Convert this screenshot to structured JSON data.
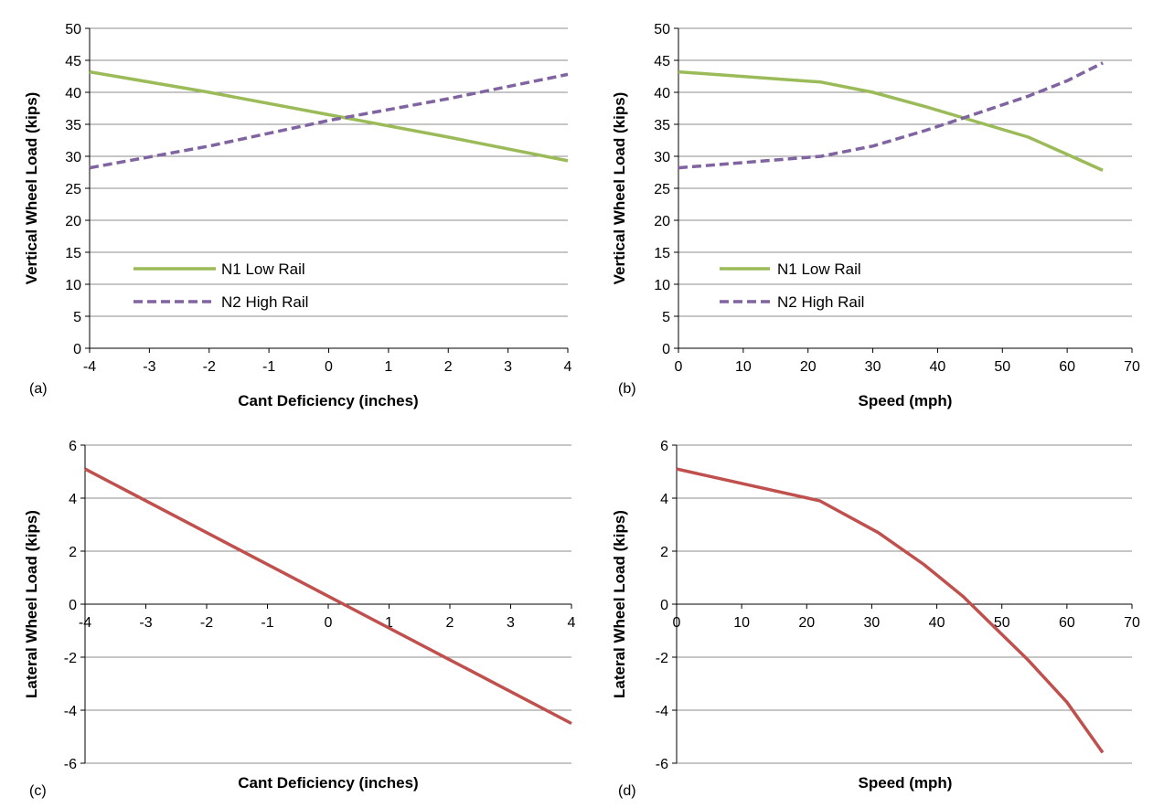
{
  "colors": {
    "n1": "#9bbb59",
    "n2": "#8064a2",
    "lateral": "#c0504d",
    "grid": "#8c8c8c",
    "axis": "#000000"
  },
  "chart_data": [
    {
      "id": "a",
      "panel_label": "(a)",
      "type": "line",
      "xlabel": "Cant Deficiency (inches)",
      "ylabel": "Vertical Wheel Load (kips)",
      "xlim": [
        -4,
        4
      ],
      "ylim": [
        0,
        50
      ],
      "xticks": [
        -4,
        -3,
        -2,
        -1,
        0,
        1,
        2,
        3,
        4
      ],
      "yticks": [
        0,
        5,
        10,
        15,
        20,
        25,
        30,
        35,
        40,
        45,
        50
      ],
      "grid": true,
      "legend": "bottom-left",
      "series": [
        {
          "name": "N1 Low Rail",
          "style": "solid",
          "color": "#9bbb59",
          "x": [
            -4,
            -2,
            0,
            2,
            4
          ],
          "y": [
            43.2,
            40.0,
            36.5,
            33.0,
            29.3
          ]
        },
        {
          "name": "N2 High Rail",
          "style": "dashed",
          "color": "#8064a2",
          "x": [
            -4,
            -2,
            0,
            2,
            4
          ],
          "y": [
            28.2,
            31.6,
            35.6,
            39.0,
            42.8
          ]
        }
      ]
    },
    {
      "id": "b",
      "panel_label": "(b)",
      "type": "line",
      "xlabel": "Speed (mph)",
      "ylabel": "Vertical Wheel Load (kips)",
      "xlim": [
        0,
        70
      ],
      "ylim": [
        0,
        50
      ],
      "xticks": [
        0,
        10,
        20,
        30,
        40,
        50,
        60,
        70
      ],
      "yticks": [
        0,
        5,
        10,
        15,
        20,
        25,
        30,
        35,
        40,
        45,
        50
      ],
      "grid": true,
      "legend": "bottom-left",
      "series": [
        {
          "name": "N1 Low Rail",
          "style": "solid",
          "color": "#9bbb59",
          "x": [
            0,
            22,
            30,
            38,
            44,
            54,
            60,
            65.5
          ],
          "y": [
            43.2,
            41.6,
            40.0,
            37.8,
            36.0,
            33.0,
            30.3,
            27.8
          ]
        },
        {
          "name": "N2 High Rail",
          "style": "dashed",
          "color": "#8064a2",
          "x": [
            0,
            22,
            30,
            38,
            44,
            54,
            60,
            65.5
          ],
          "y": [
            28.2,
            30.0,
            31.6,
            34.0,
            36.0,
            39.4,
            41.8,
            44.6
          ]
        }
      ]
    },
    {
      "id": "c",
      "panel_label": "(c)",
      "type": "line",
      "xlabel": "Cant Deficiency (inches)",
      "ylabel": "Lateral Wheel Load (kips)",
      "xlim": [
        -4,
        4
      ],
      "ylim": [
        -6,
        6
      ],
      "xticks": [
        -4,
        -3,
        -2,
        -1,
        0,
        1,
        2,
        3,
        4
      ],
      "yticks": [
        -6,
        -4,
        -2,
        0,
        2,
        4,
        6
      ],
      "grid": true,
      "series": [
        {
          "name": "",
          "style": "solid",
          "color": "#c0504d",
          "x": [
            -4,
            -2,
            0,
            2,
            4
          ],
          "y": [
            5.1,
            2.7,
            0.3,
            -2.1,
            -4.5
          ]
        }
      ]
    },
    {
      "id": "d",
      "panel_label": "(d)",
      "type": "line",
      "xlabel": "Speed (mph)",
      "ylabel": "Lateral Wheel Load (kips)",
      "xlim": [
        0,
        70
      ],
      "ylim": [
        -6,
        6
      ],
      "xticks": [
        0,
        10,
        20,
        30,
        40,
        50,
        60,
        70
      ],
      "yticks": [
        -6,
        -4,
        -2,
        0,
        2,
        4,
        6
      ],
      "grid": true,
      "series": [
        {
          "name": "",
          "style": "solid",
          "color": "#c0504d",
          "x": [
            0,
            22,
            31,
            38,
            44,
            49,
            54,
            60,
            65.5
          ],
          "y": [
            5.1,
            3.9,
            2.7,
            1.5,
            0.3,
            -0.9,
            -2.1,
            -3.7,
            -5.6
          ]
        }
      ]
    }
  ]
}
